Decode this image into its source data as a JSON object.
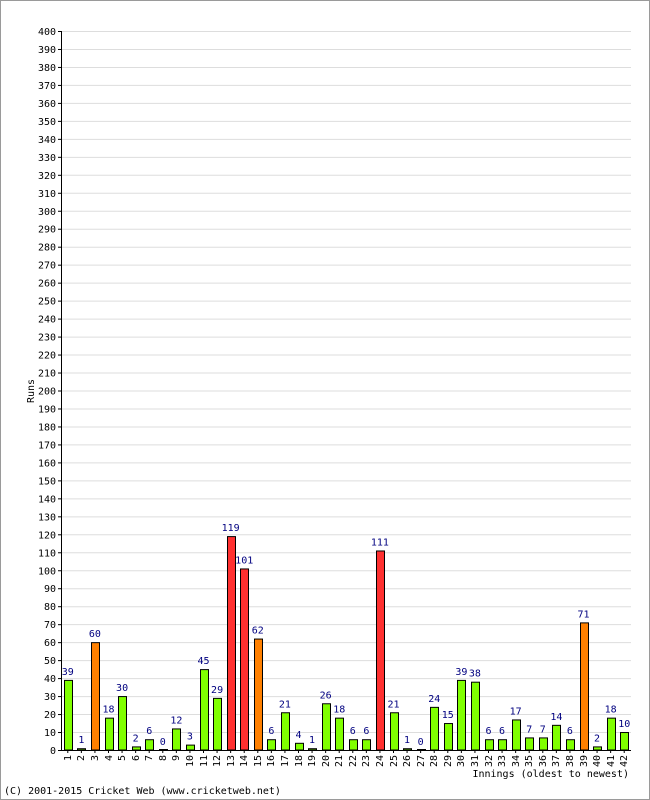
{
  "copyright": "(C) 2001-2015 Cricket Web (www.cricketweb.net)",
  "chart_data": {
    "type": "bar",
    "ylabel": "Runs",
    "xlabel": "Innings (oldest to newest)",
    "ylim": [
      0,
      400
    ],
    "ytick_step": 10,
    "grid": true,
    "categories": [
      "1",
      "2",
      "3",
      "4",
      "5",
      "6",
      "7",
      "8",
      "9",
      "10",
      "11",
      "12",
      "13",
      "14",
      "15",
      "16",
      "17",
      "18",
      "19",
      "20",
      "21",
      "22",
      "23",
      "24",
      "25",
      "26",
      "27",
      "28",
      "29",
      "30",
      "31",
      "32",
      "33",
      "34",
      "35",
      "36",
      "37",
      "38",
      "39",
      "40",
      "41",
      "42"
    ],
    "values": [
      39,
      1,
      60,
      18,
      30,
      2,
      6,
      0,
      12,
      3,
      45,
      29,
      119,
      101,
      62,
      6,
      21,
      4,
      1,
      26,
      18,
      6,
      6,
      111,
      21,
      1,
      0,
      24,
      15,
      39,
      38,
      6,
      6,
      17,
      7,
      7,
      14,
      6,
      71,
      2,
      18,
      10
    ],
    "colors": {
      "under_50": "#80ff00",
      "fifty": "#ff8000",
      "hundred": "#ff3030",
      "outline": "#000000",
      "grid": "#dddddd",
      "label": "#000080"
    }
  }
}
